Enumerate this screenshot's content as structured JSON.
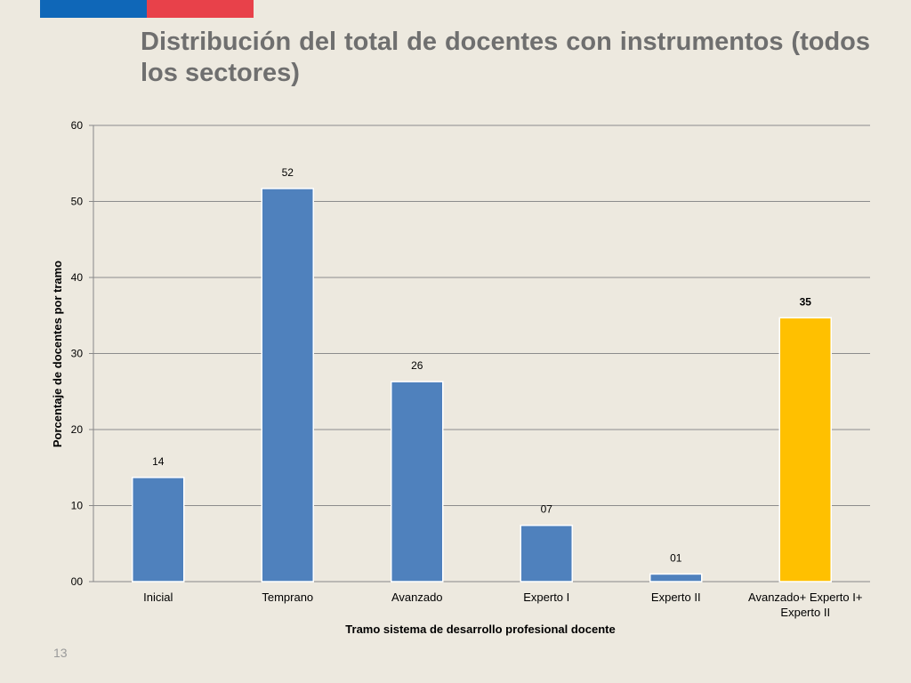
{
  "slide": {
    "title": "Distribución del total de docentes con instrumentos (todos los sectores)",
    "page_number": "13"
  },
  "colors": {
    "flag_blue": "#0f67b8",
    "flag_red": "#e8414a",
    "bar_default": "#4f81bd",
    "bar_highlight": "#ffc000",
    "background": "#ede9df"
  },
  "chart_data": {
    "type": "bar",
    "categories": [
      "Inicial",
      "Temprano",
      "Avanzado",
      "Experto I",
      "Experto II",
      "Avanzado+ Experto I+ Experto II"
    ],
    "category_lines": [
      [
        "Inicial"
      ],
      [
        "Temprano"
      ],
      [
        "Avanzado"
      ],
      [
        "Experto I"
      ],
      [
        "Experto II"
      ],
      [
        "Avanzado+ Experto I+",
        "Experto II"
      ]
    ],
    "values": [
      13.7,
      51.7,
      26.3,
      7.4,
      1.0,
      34.7
    ],
    "data_labels": [
      "14",
      "52",
      "26",
      "07",
      "01",
      "35"
    ],
    "highlight_index": 5,
    "xlabel": "Tramo sistema de desarrollo profesional docente",
    "ylabel": "Porcentaje de docentes por tramo",
    "ylim": [
      0,
      60
    ],
    "y_ticks": [
      0,
      10,
      20,
      30,
      40,
      50,
      60
    ],
    "y_tick_labels": [
      "00",
      "10",
      "20",
      "30",
      "40",
      "50",
      "60"
    ],
    "grid": true,
    "legend": "none"
  }
}
